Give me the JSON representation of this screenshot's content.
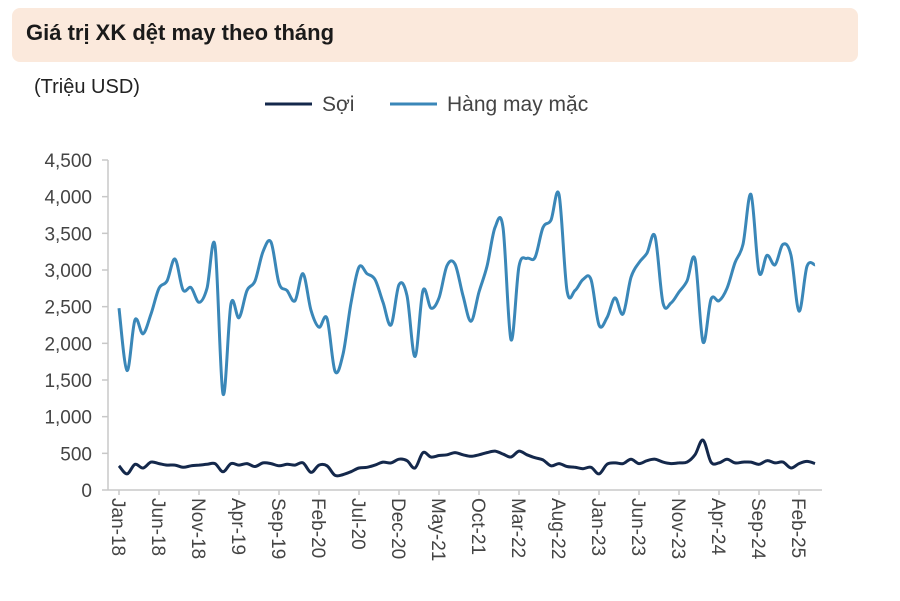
{
  "header": {
    "title": "Giá trị XK dệt may theo tháng",
    "unit": "(Triệu USD)"
  },
  "chart_data": {
    "type": "line",
    "title": "Giá trị XK dệt may theo tháng",
    "ylabel": "(Triệu USD)",
    "ylim": [
      0,
      4500
    ],
    "yticks": [
      0,
      500,
      1000,
      1500,
      2000,
      2500,
      3000,
      3500,
      4000,
      4500
    ],
    "ytick_labels": [
      "0",
      "500",
      "1,000",
      "1,500",
      "2,000",
      "2,500",
      "3,000",
      "3,500",
      "4,000",
      "4,500"
    ],
    "xtick_labels": [
      "Jan-18",
      "Jun-18",
      "Nov-18",
      "Apr-19",
      "Sep-19",
      "Feb-20",
      "Jul-20",
      "Dec-20",
      "May-21",
      "Oct-21",
      "Mar-22",
      "Aug-22",
      "Jan-23",
      "Jun-23",
      "Nov-23",
      "Apr-24",
      "Sep-24",
      "Feb-25"
    ],
    "grid": false,
    "legend": "top",
    "x": [
      "Jan-18",
      "Feb-18",
      "Mar-18",
      "Apr-18",
      "May-18",
      "Jun-18",
      "Jul-18",
      "Aug-18",
      "Sep-18",
      "Oct-18",
      "Nov-18",
      "Dec-18",
      "Jan-19",
      "Feb-19",
      "Mar-19",
      "Apr-19",
      "May-19",
      "Jun-19",
      "Jul-19",
      "Aug-19",
      "Sep-19",
      "Oct-19",
      "Nov-19",
      "Dec-19",
      "Jan-20",
      "Feb-20",
      "Mar-20",
      "Apr-20",
      "May-20",
      "Jun-20",
      "Jul-20",
      "Aug-20",
      "Sep-20",
      "Oct-20",
      "Nov-20",
      "Dec-20",
      "Jan-21",
      "Feb-21",
      "Mar-21",
      "Apr-21",
      "May-21",
      "Jun-21",
      "Jul-21",
      "Aug-21",
      "Sep-21",
      "Oct-21",
      "Nov-21",
      "Dec-21",
      "Jan-22",
      "Feb-22",
      "Mar-22",
      "Apr-22",
      "May-22",
      "Jun-22",
      "Jul-22",
      "Aug-22",
      "Sep-22",
      "Oct-22",
      "Nov-22",
      "Dec-22",
      "Jan-23",
      "Feb-23",
      "Mar-23",
      "Apr-23",
      "May-23",
      "Jun-23",
      "Jul-23",
      "Aug-23",
      "Sep-23",
      "Oct-23",
      "Nov-23",
      "Dec-23",
      "Jan-24",
      "Feb-24",
      "Mar-24",
      "Apr-24",
      "May-24",
      "Jun-24",
      "Jul-24",
      "Aug-24",
      "Sep-24",
      "Oct-24",
      "Nov-24",
      "Dec-24",
      "Jan-25",
      "Feb-25",
      "Mar-25",
      "Apr-25"
    ],
    "series": [
      {
        "name": "Sợi",
        "color": "#14284b",
        "values": [
          330,
          220,
          350,
          300,
          380,
          360,
          340,
          340,
          310,
          330,
          340,
          350,
          360,
          250,
          360,
          340,
          360,
          320,
          370,
          360,
          330,
          350,
          340,
          370,
          240,
          340,
          330,
          200,
          210,
          250,
          300,
          310,
          340,
          380,
          370,
          420,
          400,
          300,
          510,
          450,
          470,
          480,
          510,
          480,
          460,
          480,
          510,
          530,
          490,
          450,
          530,
          480,
          440,
          410,
          330,
          360,
          320,
          310,
          290,
          310,
          220,
          350,
          370,
          360,
          420,
          360,
          400,
          420,
          380,
          360,
          370,
          380,
          480,
          680,
          380,
          370,
          420,
          370,
          380,
          380,
          350,
          400,
          370,
          380,
          300,
          360,
          390,
          360
        ]
      },
      {
        "name": "Hàng may mặc",
        "color": "#3a87b8",
        "values": [
          2480,
          1630,
          2320,
          2130,
          2400,
          2750,
          2850,
          3150,
          2730,
          2760,
          2560,
          2750,
          3330,
          1310,
          2540,
          2350,
          2720,
          2850,
          3250,
          3380,
          2820,
          2720,
          2580,
          2950,
          2450,
          2220,
          2340,
          1620,
          1850,
          2550,
          3040,
          2950,
          2870,
          2560,
          2250,
          2800,
          2650,
          1820,
          2720,
          2480,
          2620,
          3060,
          3080,
          2650,
          2300,
          2700,
          3050,
          3580,
          3580,
          2050,
          3050,
          3160,
          3170,
          3580,
          3680,
          4030,
          2720,
          2720,
          2870,
          2870,
          2250,
          2350,
          2620,
          2400,
          2900,
          3100,
          3230,
          3460,
          2550,
          2550,
          2700,
          2850,
          3150,
          2020,
          2600,
          2580,
          2750,
          3100,
          3350,
          4030,
          2970,
          3200,
          3070,
          3350,
          3200,
          2440,
          3050,
          3070
        ]
      }
    ]
  }
}
